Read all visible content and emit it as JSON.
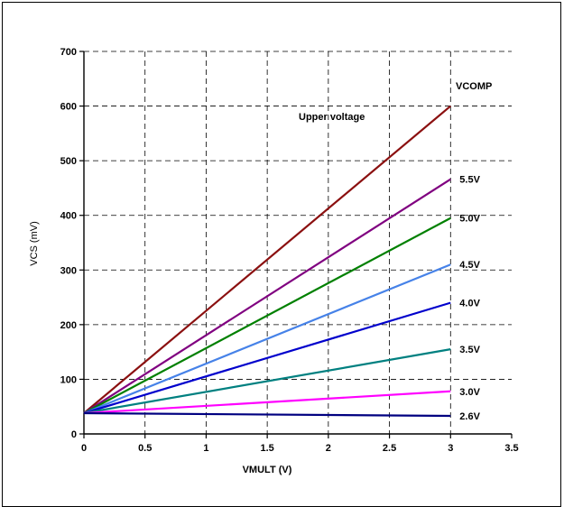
{
  "chart_data": {
    "type": "line",
    "title": "",
    "xlabel": "VMULT (V)",
    "ylabel": "VCS (mV)",
    "xlim": [
      0,
      3.5
    ],
    "ylim": [
      0,
      700
    ],
    "xticks": [
      "0",
      "0.5",
      "1",
      "1.5",
      "2",
      "2.5",
      "3",
      "3.5"
    ],
    "yticks": [
      "0",
      "100",
      "200",
      "300",
      "400",
      "500",
      "600",
      "700"
    ],
    "grid": true,
    "legend_title": "VCOMP",
    "annotation": "Upper voltage",
    "series": [
      {
        "name": "",
        "color": "#8B1010",
        "x": [
          0,
          3
        ],
        "y": [
          38,
          600
        ]
      },
      {
        "name": "5.5V",
        "color": "#800080",
        "x": [
          0,
          3
        ],
        "y": [
          38,
          466
        ]
      },
      {
        "name": "5.0V",
        "color": "#008000",
        "x": [
          0,
          3
        ],
        "y": [
          38,
          395
        ]
      },
      {
        "name": "4.5V",
        "color": "#4682E8",
        "x": [
          0,
          3
        ],
        "y": [
          38,
          310
        ]
      },
      {
        "name": "4.0V",
        "color": "#0000CC",
        "x": [
          0,
          3
        ],
        "y": [
          38,
          240
        ]
      },
      {
        "name": "3.5V",
        "color": "#008080",
        "x": [
          0,
          3
        ],
        "y": [
          38,
          155
        ]
      },
      {
        "name": "3.0V",
        "color": "#FF00FF",
        "x": [
          0,
          3
        ],
        "y": [
          38,
          78
        ]
      },
      {
        "name": "2.6V",
        "color": "#000080",
        "x": [
          0,
          3
        ],
        "y": [
          38,
          33
        ]
      }
    ]
  }
}
